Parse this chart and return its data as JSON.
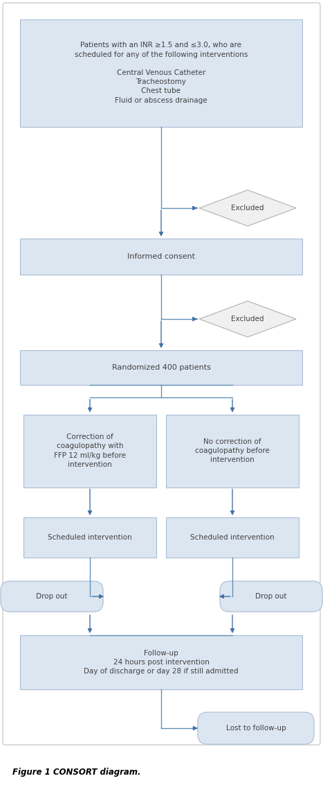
{
  "fig_width": 4.67,
  "fig_height": 11.42,
  "bg_color": "#ffffff",
  "box_fill": "#dce6f1",
  "box_edge": "#a8bcd4",
  "diamond_fill": "#f0f0f0",
  "diamond_edge": "#b0b0b0",
  "oval_fill": "#dce6f1",
  "oval_edge": "#a8bcd4",
  "arrow_color": "#4472a8",
  "line_color": "#6090b8",
  "text_color": "#404040",
  "title_text": "Figure 1 CONSORT diagram.",
  "box1_text": "Patients with an INR ≥1.5 and ≤3.0, who are\nscheduled for any of the following interventions\n\nCentral Venous Catheter\nTracheostomy\nChest tube\nFluid or abscess drainage",
  "box2_text": "Informed consent",
  "box3_text": "Randomized 400 patients",
  "box4_text": "Correction of\ncoagulopathy with\nFFP 12 ml/kg before\nintervention",
  "box5_text": "No correction of\ncoagulopathy before\nintervention",
  "box6_text": "Scheduled intervention",
  "box7_text": "Scheduled intervention",
  "box8_text": "Follow-up\n24 hours post intervention\nDay of discharge or day 28 if still admitted",
  "diamond1_text": "Excluded",
  "diamond2_text": "Excluded",
  "oval1_text": "Drop out",
  "oval2_text": "Drop out",
  "oval3_text": "Lost to follow-up"
}
